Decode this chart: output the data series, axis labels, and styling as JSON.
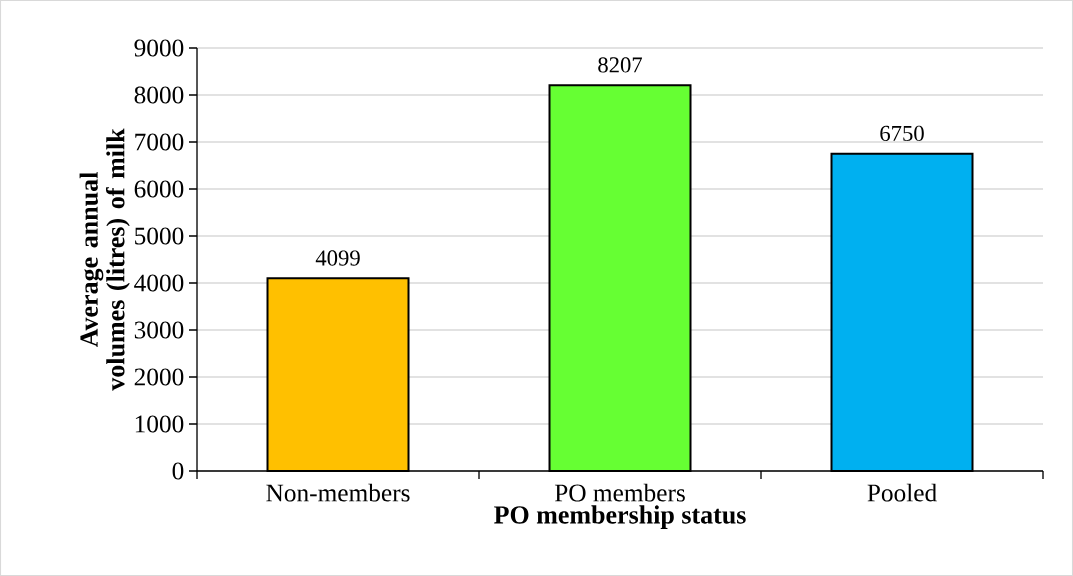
{
  "chart_data": {
    "type": "bar",
    "xlabel": "PO membership status",
    "ylabel": "Average annual volumes (litres) of milk",
    "categories": [
      "Non-members",
      "PO members",
      "Pooled"
    ],
    "values": [
      4099,
      8207,
      6750
    ],
    "colors": [
      "#ffc000",
      "#66ff33",
      "#00b0f0"
    ],
    "ylim": [
      0,
      9000
    ],
    "yticks": [
      0,
      1000,
      2000,
      3000,
      4000,
      5000,
      6000,
      7000,
      8000,
      9000
    ],
    "grid": "y",
    "data_labels": true
  }
}
